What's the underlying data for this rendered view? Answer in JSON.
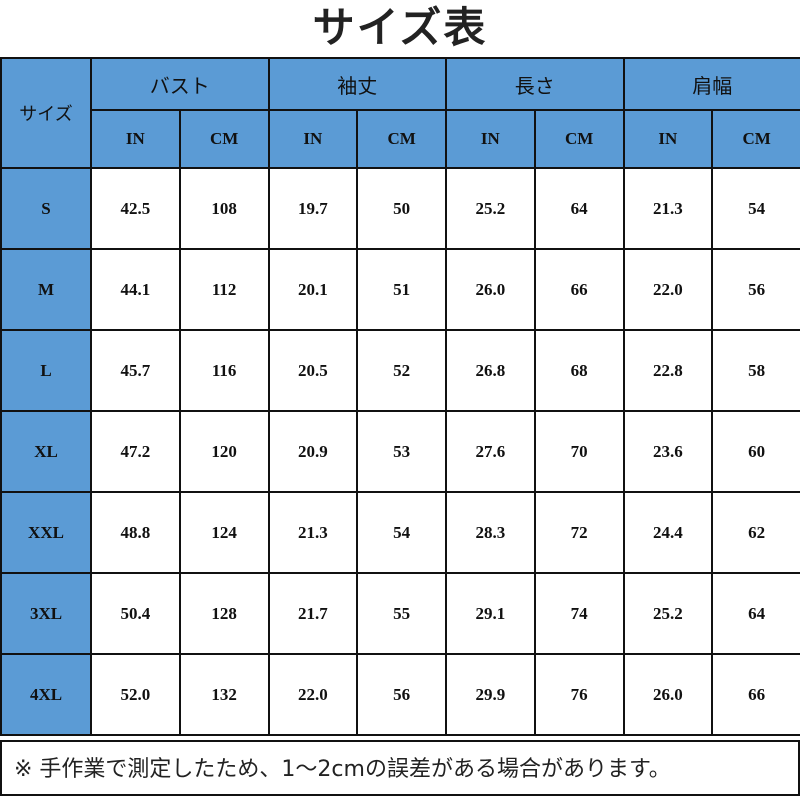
{
  "title": "サイズ表",
  "colors": {
    "header_bg": "#5b9bd5",
    "border": "#111111"
  },
  "table": {
    "size_header": "サイズ",
    "groups": [
      "バスト",
      "袖丈",
      "長さ",
      "肩幅"
    ],
    "units": [
      "IN",
      "CM"
    ],
    "rows": [
      {
        "size": "S",
        "values": [
          "42.5",
          "108",
          "19.7",
          "50",
          "25.2",
          "64",
          "21.3",
          "54"
        ]
      },
      {
        "size": "M",
        "values": [
          "44.1",
          "112",
          "20.1",
          "51",
          "26.0",
          "66",
          "22.0",
          "56"
        ]
      },
      {
        "size": "L",
        "values": [
          "45.7",
          "116",
          "20.5",
          "52",
          "26.8",
          "68",
          "22.8",
          "58"
        ]
      },
      {
        "size": "XL",
        "values": [
          "47.2",
          "120",
          "20.9",
          "53",
          "27.6",
          "70",
          "23.6",
          "60"
        ]
      },
      {
        "size": "XXL",
        "values": [
          "48.8",
          "124",
          "21.3",
          "54",
          "28.3",
          "72",
          "24.4",
          "62"
        ]
      },
      {
        "size": "3XL",
        "values": [
          "50.4",
          "128",
          "21.7",
          "55",
          "29.1",
          "74",
          "25.2",
          "64"
        ]
      },
      {
        "size": "4XL",
        "values": [
          "52.0",
          "132",
          "22.0",
          "56",
          "29.9",
          "76",
          "26.0",
          "66"
        ]
      }
    ]
  },
  "note": "※ 手作業で測定したため、1〜2cmの誤差がある場合があります。"
}
